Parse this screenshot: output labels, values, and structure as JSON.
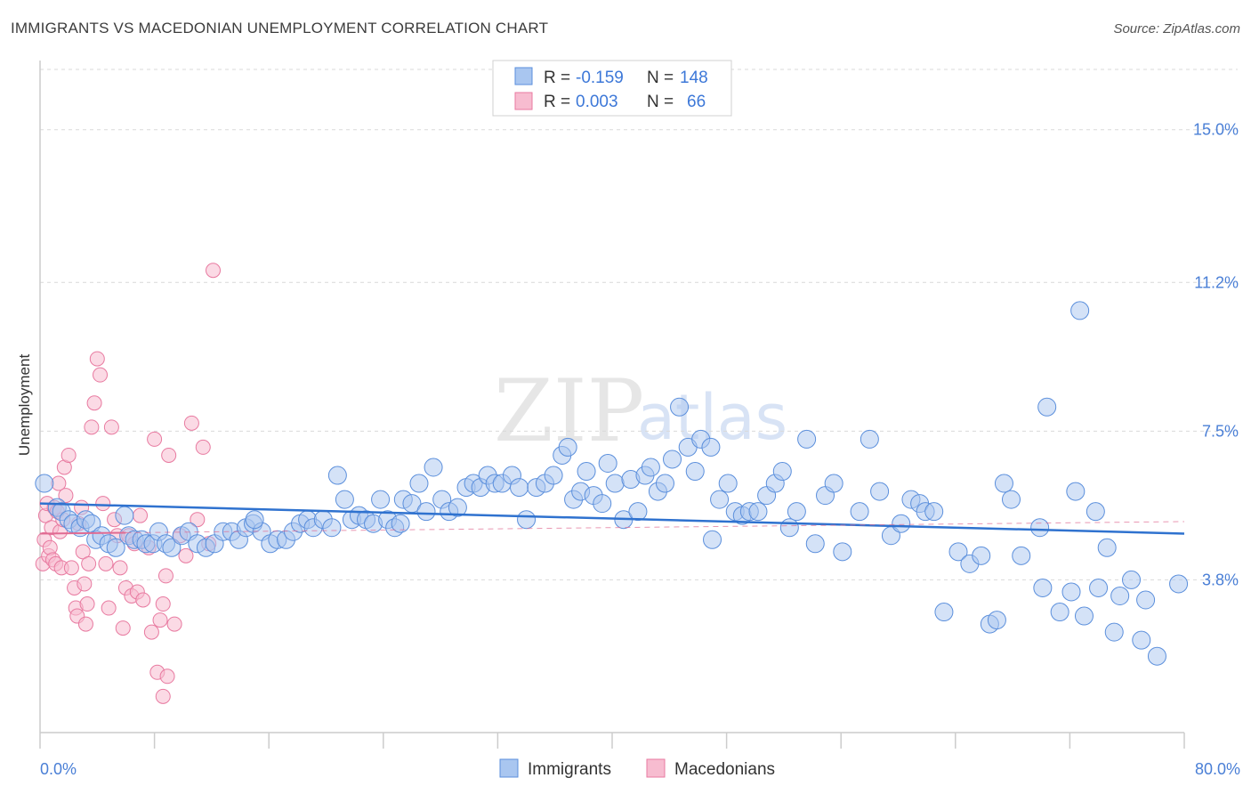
{
  "title": "IMMIGRANTS VS MACEDONIAN UNEMPLOYMENT CORRELATION CHART",
  "source": "Source: ZipAtlas.com",
  "watermark": {
    "zip": "ZIP",
    "atlas": "atlas"
  },
  "colors": {
    "immigrants_fill": "#a9c6f0",
    "immigrants_stroke": "#5b8fdc",
    "immigrants_line": "#2f72cf",
    "macedonians_fill": "#f7bcd0",
    "macedonians_stroke": "#e87aa0",
    "macedonians_line": "#e06b92",
    "tick_label": "#4a7fd6",
    "grid": "#d9d9d9"
  },
  "stats_legend": [
    {
      "series": "Immigrants",
      "r_label": "R =",
      "r": "-0.159",
      "n_label": "N =",
      "n": "148"
    },
    {
      "series": "Macedonians",
      "r_label": "R =",
      "r": "0.003",
      "n_label": "N =",
      "n": "66"
    }
  ],
  "chart_data": {
    "type": "scatter",
    "title": "IMMIGRANTS VS MACEDONIAN UNEMPLOYMENT CORRELATION CHART",
    "xlabel": "",
    "ylabel": "Unemployment",
    "xlim": [
      0,
      80
    ],
    "ylim": [
      0,
      16.5
    ],
    "x_tick_labels": [
      "0.0%",
      "80.0%"
    ],
    "y_ticks": [
      3.8,
      7.5,
      11.2,
      15.0
    ],
    "y_tick_labels": [
      "3.8%",
      "7.5%",
      "11.2%",
      "15.0%"
    ],
    "grid": true,
    "legend": "bottom-center",
    "series": [
      {
        "name": "Immigrants",
        "trend": {
          "x": [
            0,
            80
          ],
          "y": [
            5.7,
            4.95
          ]
        },
        "points": [
          [
            0.3,
            6.2
          ],
          [
            1.2,
            5.6
          ],
          [
            1.5,
            5.5
          ],
          [
            2.0,
            5.3
          ],
          [
            2.3,
            5.2
          ],
          [
            2.8,
            5.1
          ],
          [
            3.2,
            5.3
          ],
          [
            3.6,
            5.2
          ],
          [
            3.9,
            4.8
          ],
          [
            4.3,
            4.9
          ],
          [
            4.8,
            4.7
          ],
          [
            5.3,
            4.6
          ],
          [
            5.9,
            5.4
          ],
          [
            6.2,
            4.9
          ],
          [
            6.6,
            4.8
          ],
          [
            7.1,
            4.8
          ],
          [
            7.4,
            4.7
          ],
          [
            7.9,
            4.7
          ],
          [
            8.3,
            5.0
          ],
          [
            8.8,
            4.7
          ],
          [
            9.2,
            4.6
          ],
          [
            9.9,
            4.9
          ],
          [
            10.4,
            5.0
          ],
          [
            11.0,
            4.7
          ],
          [
            11.6,
            4.6
          ],
          [
            12.2,
            4.7
          ],
          [
            12.8,
            5.0
          ],
          [
            13.4,
            5.0
          ],
          [
            13.9,
            4.8
          ],
          [
            14.4,
            5.1
          ],
          [
            14.9,
            5.2
          ],
          [
            15.5,
            5.0
          ],
          [
            16.1,
            4.7
          ],
          [
            16.6,
            4.8
          ],
          [
            17.2,
            4.8
          ],
          [
            17.7,
            5.0
          ],
          [
            18.2,
            5.2
          ],
          [
            18.7,
            5.3
          ],
          [
            19.1,
            5.1
          ],
          [
            19.8,
            5.3
          ],
          [
            20.4,
            5.1
          ],
          [
            20.8,
            6.4
          ],
          [
            21.3,
            5.8
          ],
          [
            21.8,
            5.3
          ],
          [
            22.3,
            5.4
          ],
          [
            22.8,
            5.3
          ],
          [
            23.3,
            5.2
          ],
          [
            23.8,
            5.8
          ],
          [
            24.3,
            5.3
          ],
          [
            24.8,
            5.1
          ],
          [
            25.4,
            5.8
          ],
          [
            26.0,
            5.7
          ],
          [
            26.5,
            6.2
          ],
          [
            27.0,
            5.5
          ],
          [
            27.5,
            6.6
          ],
          [
            28.1,
            5.8
          ],
          [
            28.6,
            5.5
          ],
          [
            29.2,
            5.6
          ],
          [
            29.8,
            6.1
          ],
          [
            30.3,
            6.2
          ],
          [
            30.8,
            6.1
          ],
          [
            31.3,
            6.4
          ],
          [
            31.8,
            6.2
          ],
          [
            32.3,
            6.2
          ],
          [
            33.0,
            6.4
          ],
          [
            33.5,
            6.1
          ],
          [
            34.0,
            5.3
          ],
          [
            34.7,
            6.1
          ],
          [
            35.3,
            6.2
          ],
          [
            35.9,
            6.4
          ],
          [
            36.5,
            6.9
          ],
          [
            36.9,
            7.1
          ],
          [
            37.3,
            5.8
          ],
          [
            37.8,
            6.0
          ],
          [
            38.2,
            6.5
          ],
          [
            38.7,
            5.9
          ],
          [
            39.3,
            5.7
          ],
          [
            39.7,
            6.7
          ],
          [
            40.2,
            6.2
          ],
          [
            40.8,
            5.3
          ],
          [
            41.3,
            6.3
          ],
          [
            41.8,
            5.5
          ],
          [
            42.3,
            6.4
          ],
          [
            42.7,
            6.6
          ],
          [
            43.2,
            6.0
          ],
          [
            43.7,
            6.2
          ],
          [
            44.2,
            6.8
          ],
          [
            44.7,
            8.1
          ],
          [
            45.3,
            7.1
          ],
          [
            45.8,
            6.5
          ],
          [
            46.2,
            7.3
          ],
          [
            46.9,
            7.1
          ],
          [
            47.5,
            5.8
          ],
          [
            48.1,
            6.2
          ],
          [
            48.6,
            5.5
          ],
          [
            49.1,
            5.4
          ],
          [
            49.6,
            5.5
          ],
          [
            50.2,
            5.5
          ],
          [
            50.8,
            5.9
          ],
          [
            51.4,
            6.2
          ],
          [
            51.9,
            6.5
          ],
          [
            52.4,
            5.1
          ],
          [
            52.9,
            5.5
          ],
          [
            53.6,
            7.3
          ],
          [
            54.2,
            4.7
          ],
          [
            54.9,
            5.9
          ],
          [
            55.5,
            6.2
          ],
          [
            56.1,
            4.5
          ],
          [
            57.3,
            5.5
          ],
          [
            58.0,
            7.3
          ],
          [
            58.7,
            6.0
          ],
          [
            59.5,
            4.9
          ],
          [
            60.2,
            5.2
          ],
          [
            60.9,
            5.8
          ],
          [
            61.5,
            5.7
          ],
          [
            61.9,
            5.5
          ],
          [
            62.5,
            5.5
          ],
          [
            63.2,
            3.0
          ],
          [
            64.2,
            4.5
          ],
          [
            65.0,
            4.2
          ],
          [
            65.8,
            4.4
          ],
          [
            66.4,
            2.7
          ],
          [
            66.9,
            2.8
          ],
          [
            67.4,
            6.2
          ],
          [
            67.9,
            5.8
          ],
          [
            68.6,
            4.4
          ],
          [
            69.9,
            5.1
          ],
          [
            70.1,
            3.6
          ],
          [
            71.3,
            3.0
          ],
          [
            72.1,
            3.5
          ],
          [
            72.4,
            6.0
          ],
          [
            73.0,
            2.9
          ],
          [
            73.8,
            5.5
          ],
          [
            74.0,
            3.6
          ],
          [
            74.6,
            4.6
          ],
          [
            75.1,
            2.5
          ],
          [
            75.5,
            3.4
          ],
          [
            76.3,
            3.8
          ],
          [
            77.0,
            2.3
          ],
          [
            77.3,
            3.3
          ],
          [
            78.1,
            1.9
          ],
          [
            79.6,
            3.7
          ],
          [
            72.7,
            10.5
          ],
          [
            70.4,
            8.1
          ],
          [
            25.2,
            5.2
          ],
          [
            15.0,
            5.3
          ],
          [
            47.0,
            4.8
          ]
        ]
      },
      {
        "name": "Macedonians",
        "trend": {
          "x": [
            0,
            80
          ],
          "y": [
            4.95,
            5.25
          ]
        },
        "points": [
          [
            0.2,
            4.2
          ],
          [
            0.3,
            4.8
          ],
          [
            0.4,
            5.4
          ],
          [
            0.5,
            5.7
          ],
          [
            0.6,
            4.4
          ],
          [
            0.7,
            4.6
          ],
          [
            0.8,
            5.1
          ],
          [
            0.9,
            4.3
          ],
          [
            1.0,
            5.6
          ],
          [
            1.1,
            4.2
          ],
          [
            1.2,
            5.5
          ],
          [
            1.3,
            6.2
          ],
          [
            1.4,
            5.0
          ],
          [
            1.5,
            4.1
          ],
          [
            1.6,
            5.3
          ],
          [
            1.7,
            6.6
          ],
          [
            1.8,
            5.9
          ],
          [
            2.0,
            6.9
          ],
          [
            2.2,
            4.1
          ],
          [
            2.4,
            3.6
          ],
          [
            2.5,
            3.1
          ],
          [
            2.6,
            2.9
          ],
          [
            2.7,
            5.2
          ],
          [
            2.9,
            5.6
          ],
          [
            3.0,
            4.5
          ],
          [
            3.1,
            3.7
          ],
          [
            3.2,
            2.7
          ],
          [
            3.3,
            3.2
          ],
          [
            3.4,
            4.2
          ],
          [
            3.6,
            7.6
          ],
          [
            3.8,
            8.2
          ],
          [
            4.0,
            9.3
          ],
          [
            4.2,
            8.9
          ],
          [
            4.4,
            5.7
          ],
          [
            4.6,
            4.2
          ],
          [
            4.8,
            3.1
          ],
          [
            5.0,
            7.6
          ],
          [
            5.2,
            5.3
          ],
          [
            5.4,
            4.9
          ],
          [
            5.6,
            4.1
          ],
          [
            5.8,
            2.6
          ],
          [
            6.0,
            3.6
          ],
          [
            6.2,
            4.9
          ],
          [
            6.4,
            3.4
          ],
          [
            6.6,
            4.7
          ],
          [
            6.8,
            3.5
          ],
          [
            7.0,
            5.4
          ],
          [
            7.2,
            3.3
          ],
          [
            7.6,
            4.6
          ],
          [
            7.8,
            2.5
          ],
          [
            8.0,
            7.3
          ],
          [
            8.4,
            2.8
          ],
          [
            8.6,
            3.2
          ],
          [
            8.8,
            3.9
          ],
          [
            9.0,
            6.9
          ],
          [
            9.4,
            2.7
          ],
          [
            9.8,
            4.9
          ],
          [
            10.2,
            4.4
          ],
          [
            10.6,
            7.7
          ],
          [
            11.0,
            5.3
          ],
          [
            11.4,
            7.1
          ],
          [
            11.8,
            4.7
          ],
          [
            12.1,
            11.5
          ],
          [
            8.2,
            1.5
          ],
          [
            8.6,
            0.9
          ],
          [
            8.9,
            1.4
          ]
        ]
      }
    ]
  },
  "bottom_legend": [
    {
      "label": "Immigrants"
    },
    {
      "label": "Macedonians"
    }
  ]
}
